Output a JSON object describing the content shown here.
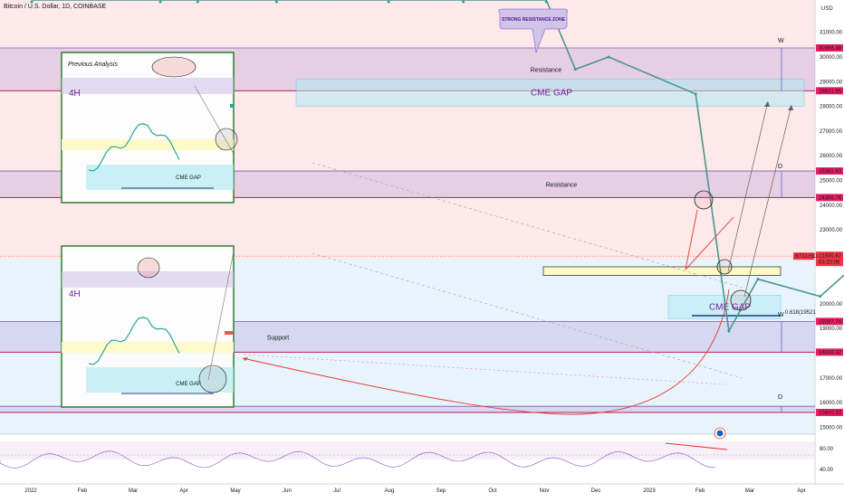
{
  "chart_data": {
    "type": "candlestick",
    "symbol_title": "Bitcoin / U.S. Dollar, 1D, COINBASE",
    "currency_label": "USD",
    "ylim": [
      14400,
      32500
    ],
    "x_axis_labels": [
      "2022",
      "Feb",
      "Mar",
      "Apr",
      "May",
      "Jun",
      "Jul",
      "Aug",
      "Sep",
      "Oct",
      "Nov",
      "Dec",
      "2023",
      "Feb",
      "Mar",
      "Apr"
    ],
    "y_axis_labels": [
      {
        "value": 32000,
        "text": "32000.00"
      },
      {
        "value": 31000,
        "text": "31000.00"
      },
      {
        "value": 30000,
        "text": "30000.00"
      },
      {
        "value": 29000,
        "text": "29000.00"
      },
      {
        "value": 28000,
        "text": "28000.00"
      },
      {
        "value": 27000,
        "text": "27000.00"
      },
      {
        "value": 26000,
        "text": "26000.00"
      },
      {
        "value": 25000,
        "text": "25000.00"
      },
      {
        "value": 24000,
        "text": "24000.00"
      },
      {
        "value": 23000,
        "text": "23000.00"
      },
      {
        "value": 22000,
        "text": "22000.00"
      },
      {
        "value": 20000,
        "text": "20000.00"
      },
      {
        "value": 19000,
        "text": "19000.00"
      },
      {
        "value": 17000,
        "text": "17000.00"
      },
      {
        "value": 16000,
        "text": "16000.00"
      },
      {
        "value": 15000,
        "text": "15000.00"
      }
    ],
    "price_tags": [
      {
        "value": 30366.38,
        "text": "30366.38",
        "color": "#e91e63"
      },
      {
        "value": 28631.95,
        "text": "28631.95",
        "color": "#e91e63"
      },
      {
        "value": 25381.63,
        "text": "25381.63",
        "color": "#e91e63"
      },
      {
        "value": 24306.76,
        "text": "24306.76",
        "color": "#e91e63"
      },
      {
        "value": 19287.74,
        "text": "19287.74",
        "color": "#e91e63"
      },
      {
        "value": 18043.32,
        "text": "18043.32",
        "color": "#e91e63"
      },
      {
        "value": 15600.33,
        "text": "15600.33",
        "color": "#e91e63"
      }
    ],
    "current_price": {
      "symbol": "BTCUSD",
      "value": 21930.82,
      "text": "21930.82",
      "countdown": "03:20:06",
      "color": "#f23645"
    },
    "zones": [
      {
        "label": "Resistance",
        "top": 30366.38,
        "bottom": 28631.95,
        "color": "#9575cd"
      },
      {
        "label": "Resistance",
        "top": 25381.63,
        "bottom": 24306.76,
        "color": "#9575cd"
      },
      {
        "label": "Support",
        "top": 19287.74,
        "bottom": 18043.32,
        "color": "#9575cd"
      },
      {
        "label": "",
        "top": 15850,
        "bottom": 15600.33,
        "color": "#9575cd"
      }
    ],
    "cme_gaps": [
      {
        "label": "CME GAP",
        "top": 29100,
        "bottom": 28000
      },
      {
        "label": "CME GAP",
        "top": 20350,
        "bottom": 19400
      }
    ],
    "fib_label": "0.618(19521",
    "callout": "STRONG RESISTANCE ZONE",
    "timeframe_marks": [
      "W",
      "D",
      "W",
      "D"
    ],
    "rsi": {
      "levels": [
        "80.00",
        "40.00"
      ]
    },
    "price_series": {
      "dates": [
        "2022-01-01",
        "2022-02-01",
        "2022-02-10",
        "2022-03-01",
        "2022-03-28",
        "2022-04-15",
        "2022-05-05",
        "2022-05-12",
        "2022-05-20",
        "2022-06-10",
        "2022-06-18",
        "2022-06-25",
        "2022-07-10",
        "2022-07-30",
        "2022-08-14",
        "2022-08-25",
        "2022-09-12",
        "2022-09-25",
        "2022-10-10",
        "2022-10-29",
        "2022-11-09",
        "2022-11-20",
        "2022-12-01",
        "2022-12-14",
        "2022-12-30",
        "2023-01-08",
        "2023-01-14",
        "2023-01-25",
        "2023-02-02",
        "2023-02-08",
        "2023-02-11"
      ],
      "values": [
        47000,
        38000,
        44000,
        39000,
        47000,
        40000,
        36000,
        29500,
        30000,
        28500,
        18900,
        21000,
        20300,
        23300,
        24400,
        21500,
        22300,
        18800,
        19100,
        20600,
        16300,
        16200,
        17100,
        17800,
        16600,
        17200,
        20500,
        23100,
        23700,
        22600,
        21930.82
      ]
    }
  },
  "insets": [
    {
      "annotation": "Previous Analysis",
      "timeframe_text": "4H",
      "gap_text": "CME GAP"
    },
    {
      "timeframe_text": "4H",
      "gap_text": "CME GAP"
    }
  ]
}
